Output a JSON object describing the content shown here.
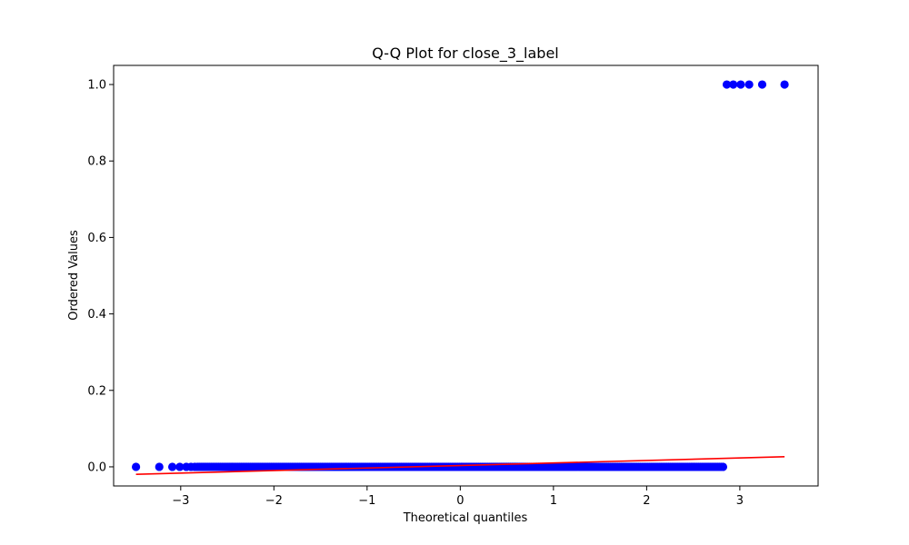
{
  "chart_data": {
    "type": "scatter",
    "title": "Q-Q Plot for close_3_label",
    "xlabel": "Theoretical quantiles",
    "ylabel": "Ordered Values",
    "xlim": [
      -3.72,
      3.84
    ],
    "ylim": [
      -0.05,
      1.05
    ],
    "xticks": [
      -3,
      -2,
      -1,
      0,
      1,
      2,
      3
    ],
    "xtick_labels": [
      "−3",
      "−2",
      "−1",
      "0",
      "1",
      "2",
      "3"
    ],
    "yticks": [
      0.0,
      0.2,
      0.4,
      0.6,
      0.8,
      1.0
    ],
    "ytick_labels": [
      "0.0",
      "0.2",
      "0.4",
      "0.6",
      "0.8",
      "1.0"
    ],
    "grid": false,
    "legend": "none",
    "series": [
      {
        "kind": "points",
        "color": "#0000ff",
        "zero_group": {
          "y": 0,
          "sparse_left_x": [
            -3.48,
            -3.23,
            -3.09,
            -3.01,
            -2.94,
            -2.89,
            -2.85
          ],
          "dense_x_range": [
            -2.82,
            2.82
          ],
          "dense_count": 300
        },
        "one_group": {
          "y": 1,
          "x": [
            2.86,
            2.93,
            3.01,
            3.1,
            3.24,
            3.48
          ]
        }
      },
      {
        "kind": "fit_line",
        "color": "#ff0000",
        "x": [
          -3.48,
          3.48
        ],
        "y": [
          -0.0195,
          0.0265
        ]
      }
    ]
  }
}
